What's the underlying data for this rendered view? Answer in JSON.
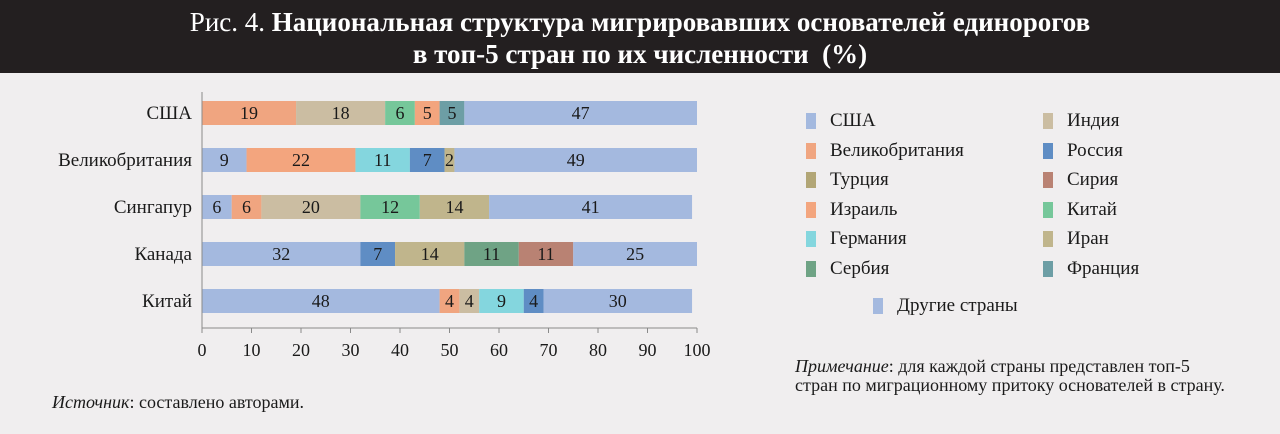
{
  "title": {
    "prefix": "Рис. 4.",
    "line1_bold": "Национальная структура мигрировавших основателей единорогов",
    "line2": "в топ-5 стран по их численности (%)"
  },
  "colors": {
    "США": "#a4b9df",
    "Великобритания": "#f0a580",
    "Турция": "#b2a676",
    "Израиль": "#f3a57e",
    "Германия": "#84d6de",
    "Сербия": "#6fa385",
    "Индия": "#cbbda2",
    "Россия": "#5f8dc4",
    "Сирия": "#b98273",
    "Китай": "#76c79a",
    "Иран": "#c0b58c",
    "Франция": "#6d9ea5",
    "Другие страны": "#a4b9df"
  },
  "legend": {
    "column1": [
      "США",
      "Великобритания",
      "Турция",
      "Израиль",
      "Германия",
      "Сербия"
    ],
    "column2": [
      "Индия",
      "Россия",
      "Сирия",
      "Китай",
      "Иран",
      "Франция"
    ],
    "bottom": "Другие страны"
  },
  "chart_data": {
    "type": "bar",
    "orientation": "horizontal",
    "stacked": true,
    "xlim": [
      0,
      100
    ],
    "xticks": [
      0,
      10,
      20,
      30,
      40,
      50,
      60,
      70,
      80,
      90,
      100
    ],
    "categories": [
      "США",
      "Великобритания",
      "Сингапур",
      "Канада",
      "Китай"
    ],
    "bars": [
      {
        "category": "США",
        "segments": [
          {
            "country": "Великобритания",
            "value": 19
          },
          {
            "country": "Индия",
            "value": 18
          },
          {
            "country": "Китай",
            "value": 6
          },
          {
            "country": "Израиль",
            "value": 5
          },
          {
            "country": "Франция",
            "value": 5
          },
          {
            "country": "Другие страны",
            "value": 47
          }
        ]
      },
      {
        "category": "Великобритания",
        "segments": [
          {
            "country": "США",
            "value": 9
          },
          {
            "country": "Израиль",
            "value": 22
          },
          {
            "country": "Германия",
            "value": 11
          },
          {
            "country": "Россия",
            "value": 7
          },
          {
            "country": "Иран",
            "value": 2
          },
          {
            "country": "Другие страны",
            "value": 49
          }
        ]
      },
      {
        "category": "Сингапур",
        "segments": [
          {
            "country": "США",
            "value": 6
          },
          {
            "country": "Великобритания",
            "value": 6
          },
          {
            "country": "Индия",
            "value": 20
          },
          {
            "country": "Китай",
            "value": 12
          },
          {
            "country": "Иран",
            "value": 14
          },
          {
            "country": "Другие страны",
            "value": 41
          }
        ]
      },
      {
        "category": "Канада",
        "segments": [
          {
            "country": "США",
            "value": 32
          },
          {
            "country": "Россия",
            "value": 7
          },
          {
            "country": "Иран",
            "value": 14
          },
          {
            "country": "Сербия",
            "value": 11
          },
          {
            "country": "Сирия",
            "value": 11
          },
          {
            "country": "Другие страны",
            "value": 25
          }
        ]
      },
      {
        "category": "Китай",
        "segments": [
          {
            "country": "США",
            "value": 48
          },
          {
            "country": "Великобритания",
            "value": 4
          },
          {
            "country": "Индия",
            "value": 4
          },
          {
            "country": "Германия",
            "value": 9
          },
          {
            "country": "Россия",
            "value": 4
          },
          {
            "country": "Другие страны",
            "value": 30
          }
        ]
      }
    ]
  },
  "source": {
    "label": "Источник",
    "text": ": составлено авторами."
  },
  "note": {
    "label": "Примечание",
    "text": ": для каждой страны представлен топ-5 стран по миграционному притоку основателей в страну."
  }
}
